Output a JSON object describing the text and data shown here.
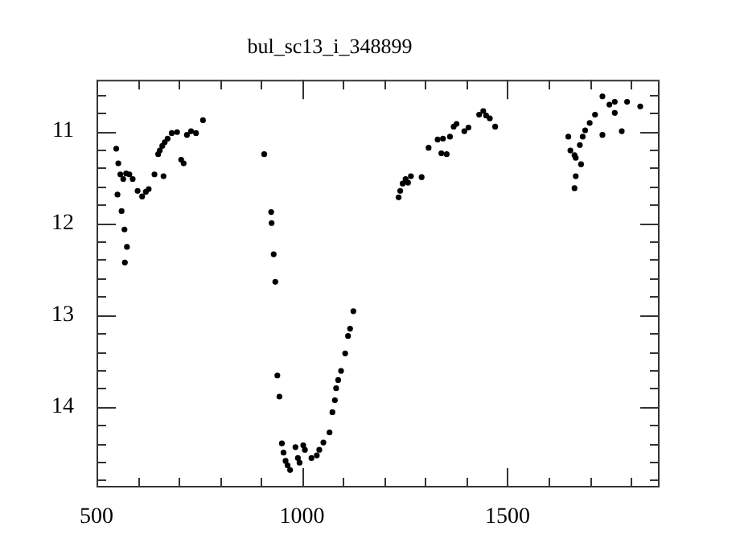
{
  "chart_data": {
    "type": "scatter",
    "title": "bul_sc13_i_348899",
    "x": [
      548,
      553,
      551,
      561,
      568,
      574,
      569,
      558,
      565,
      572,
      580,
      588,
      600,
      611,
      620,
      627,
      641,
      663,
      650,
      654,
      660,
      666,
      673,
      683,
      696,
      706,
      712,
      720,
      730,
      742,
      759,
      908,
      925,
      926,
      931,
      935,
      940,
      945,
      951,
      955,
      960,
      965,
      971,
      984,
      990,
      994,
      1003,
      1007,
      1023,
      1036,
      1042,
      1052,
      1067,
      1074,
      1080,
      1083,
      1088,
      1095,
      1105,
      1112,
      1117,
      1125,
      1235,
      1239,
      1245,
      1252,
      1258,
      1265,
      1291,
      1308,
      1330,
      1343,
      1339,
      1352,
      1360,
      1369,
      1376,
      1395,
      1405,
      1431,
      1441,
      1448,
      1457,
      1470,
      1648,
      1653,
      1663,
      1666,
      1679,
      1666,
      1663,
      1676,
      1683,
      1689,
      1700,
      1713,
      1731,
      1731,
      1748,
      1761,
      1761,
      1778,
      1791,
      1823
    ],
    "series": [
      {
        "color": "#000000",
        "values": [
          11.19,
          11.35,
          11.69,
          11.87,
          12.07,
          12.26,
          12.43,
          11.47,
          11.52,
          11.46,
          11.47,
          11.52,
          11.65,
          11.71,
          11.66,
          11.63,
          11.47,
          11.49,
          11.25,
          11.21,
          11.16,
          11.12,
          11.08,
          11.02,
          11.01,
          11.31,
          11.35,
          11.04,
          11.0,
          11.02,
          10.88,
          11.25,
          11.88,
          12.0,
          12.34,
          12.64,
          13.66,
          13.89,
          14.4,
          14.5,
          14.59,
          14.64,
          14.69,
          14.44,
          14.56,
          14.61,
          14.42,
          14.47,
          14.56,
          14.53,
          14.47,
          14.39,
          14.28,
          14.06,
          13.93,
          13.8,
          13.71,
          13.61,
          13.42,
          13.23,
          13.15,
          12.96,
          11.72,
          11.65,
          11.57,
          11.52,
          11.56,
          11.49,
          11.5,
          11.18,
          11.09,
          11.08,
          11.24,
          11.25,
          11.06,
          10.95,
          10.92,
          11.0,
          10.96,
          10.82,
          10.78,
          10.83,
          10.86,
          10.95,
          11.06,
          11.21,
          11.26,
          11.29,
          11.36,
          11.49,
          11.62,
          11.15,
          11.06,
          10.99,
          10.91,
          10.82,
          11.04,
          10.62,
          10.71,
          10.68,
          10.8,
          11.0,
          10.68,
          10.73
        ]
      }
    ],
    "xlim": [
      500,
      1870
    ],
    "ylim": [
      14.88,
      10.44
    ],
    "xticks": [
      500,
      {
        "value": 600,
        "label": null
      },
      {
        "value": 700,
        "label": null
      },
      {
        "value": 800,
        "label": null
      },
      {
        "value": 900,
        "label": null
      },
      1000,
      {
        "value": 1100,
        "label": null
      },
      {
        "value": 1200,
        "label": null
      },
      {
        "value": 1300,
        "label": null
      },
      {
        "value": 1400,
        "label": null
      },
      1500,
      {
        "value": 1600,
        "label": null
      },
      {
        "value": 1700,
        "label": null
      },
      {
        "value": 1800,
        "label": null
      }
    ],
    "yticks": [
      {
        "value": 10.6,
        "label": null
      },
      {
        "value": 10.8,
        "label": null
      },
      11,
      {
        "value": 11.2,
        "label": null
      },
      {
        "value": 11.4,
        "label": null
      },
      {
        "value": 11.6,
        "label": null
      },
      {
        "value": 11.8,
        "label": null
      },
      12,
      {
        "value": 12.2,
        "label": null
      },
      {
        "value": 12.4,
        "label": null
      },
      {
        "value": 12.6,
        "label": null
      },
      {
        "value": 12.8,
        "label": null
      },
      13,
      {
        "value": 13.2,
        "label": null
      },
      {
        "value": 13.4,
        "label": null
      },
      {
        "value": 13.6,
        "label": null
      },
      {
        "value": 13.8,
        "label": null
      },
      14,
      {
        "value": 14.2,
        "label": null
      },
      {
        "value": 14.4,
        "label": null
      },
      {
        "value": 14.6,
        "label": null
      },
      {
        "value": 14.8,
        "label": null
      }
    ],
    "grid": false,
    "legend": false,
    "marker": "circle"
  }
}
